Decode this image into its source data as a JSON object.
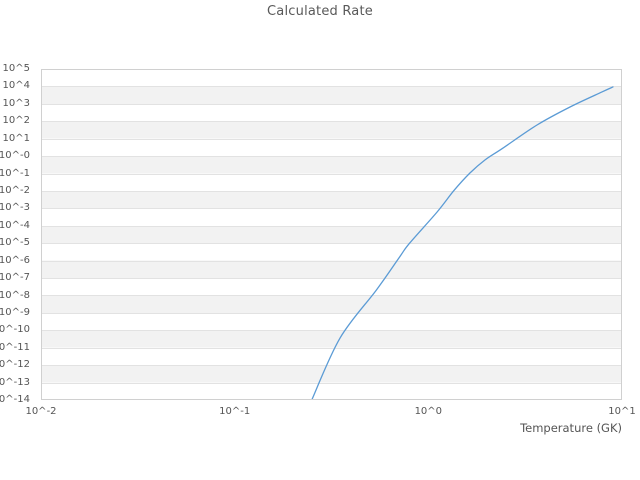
{
  "chart": {
    "title": "Calculated Rate",
    "x_axis_label": "Temperature (GK)"
  },
  "chart_data": {
    "type": "line",
    "title": "Calculated Rate",
    "xlabel": "Temperature (GK)",
    "ylabel": "",
    "x_scale": "log",
    "y_scale": "log",
    "xlim": [
      0.01,
      10
    ],
    "ylim": [
      1e-14,
      100000.0
    ],
    "x_tick_labels": [
      "10^-2",
      "10^-1",
      "10^0",
      "10^1"
    ],
    "y_tick_labels": [
      "10^5",
      "10^4",
      "10^3",
      "10^2",
      "10^1",
      "10^-0",
      "10^-1",
      "10^-2",
      "10^-3",
      "10^-4",
      "10^-5",
      "10^-6",
      "10^-7",
      "10^-8",
      "10^-9",
      "10^-10",
      "10^-11",
      "10^-12",
      "10^-13",
      "10^-14"
    ],
    "grid": "horizontal-decade-bands",
    "legend": "none",
    "series": [
      {
        "name": "Calculated Rate",
        "x": [
          0.25,
          0.35,
          0.54,
          0.71,
          0.8,
          1.11,
          1.36,
          1.64,
          1.96,
          2.43,
          3.64,
          5.39,
          7.88,
          8.98
        ],
        "y": [
          1e-14,
          3.6e-11,
          2.1e-08,
          1.6e-06,
          1e-05,
          0.00062,
          0.011,
          0.107,
          0.6,
          2.9,
          61,
          660,
          4800,
          9300
        ],
        "color": "#5b9bd5"
      }
    ]
  },
  "colors": {
    "line": "#5b9bd5",
    "band_fill": "#f2f2f2",
    "gridline": "#e2e2e2",
    "plot_border": "#d0d0d0",
    "text": "#555555"
  }
}
